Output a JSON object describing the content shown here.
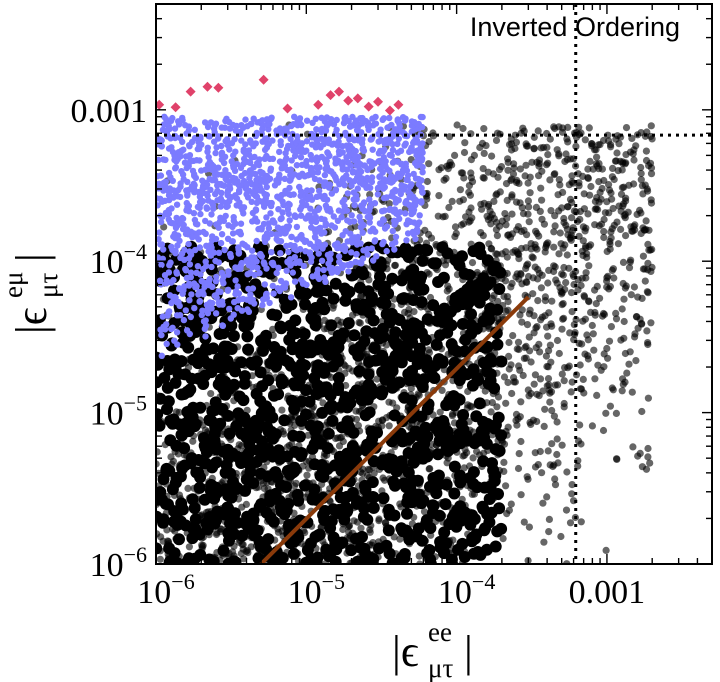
{
  "chart_data": {
    "type": "scatter",
    "scale": {
      "x": "log",
      "y": "log"
    },
    "xlim": [
      1e-06,
      0.005
    ],
    "ylim": [
      1e-06,
      0.005
    ],
    "x_ticks": [
      {
        "value": 1e-06,
        "base": "10",
        "exp": "−6"
      },
      {
        "value": 1e-05,
        "base": "10",
        "exp": "−5"
      },
      {
        "value": 0.0001,
        "base": "10",
        "exp": "−4"
      },
      {
        "value": 0.001,
        "base": "0.001",
        "exp": ""
      }
    ],
    "y_ticks": [
      {
        "value": 1e-06,
        "base": "10",
        "exp": "−6"
      },
      {
        "value": 1e-05,
        "base": "10",
        "exp": "−5"
      },
      {
        "value": 0.0001,
        "base": "10",
        "exp": "−4"
      },
      {
        "value": 0.001,
        "base": "0.001",
        "exp": ""
      }
    ],
    "xlabel": {
      "base": "ϵ",
      "sup": "ee",
      "sub": "μτ"
    },
    "ylabel": {
      "base": "ϵ",
      "sup": "eμ",
      "sub": "μτ"
    },
    "annotation": "Inverted Ordering",
    "reference_lines": [
      {
        "orientation": "vertical",
        "x": 0.00062,
        "style": "dotted"
      },
      {
        "orientation": "horizontal",
        "y": 0.00068,
        "style": "dotted"
      }
    ],
    "line_segment": {
      "x": [
        5e-06,
        0.0003
      ],
      "y": [
        1e-06,
        5.8e-05
      ],
      "color": "#8a3a0a"
    },
    "series": [
      {
        "color": "#000000",
        "shape": "circle",
        "cloud": {
          "x_range": [
            1e-06,
            0.002
          ],
          "y_range": [
            1e-06,
            0.0008
          ],
          "points": 3200
        }
      },
      {
        "color": "#7b7bff",
        "shape": "circle",
        "cloud": {
          "x_range": [
            1e-06,
            6e-05
          ],
          "y_range": [
            4e-06,
            0.0009
          ],
          "points": 1500
        }
      },
      {
        "color": "#e0426a",
        "shape": "diamond",
        "x": [
          1.05e-06,
          1.35e-06,
          1.7e-06,
          2.2e-06,
          2.6e-06,
          5.2e-06,
          7.5e-06,
          1.2e-05,
          1.45e-05,
          1.65e-05,
          1.9e-05,
          2.2e-05,
          2.6e-05,
          3e-05,
          3.6e-05,
          4.1e-05
        ],
        "y": [
          0.00108,
          0.00104,
          0.00132,
          0.00142,
          0.0014,
          0.00158,
          0.00102,
          0.00108,
          0.00125,
          0.00132,
          0.00115,
          0.00119,
          0.00105,
          0.00113,
          0.00099,
          0.00108
        ]
      }
    ]
  }
}
